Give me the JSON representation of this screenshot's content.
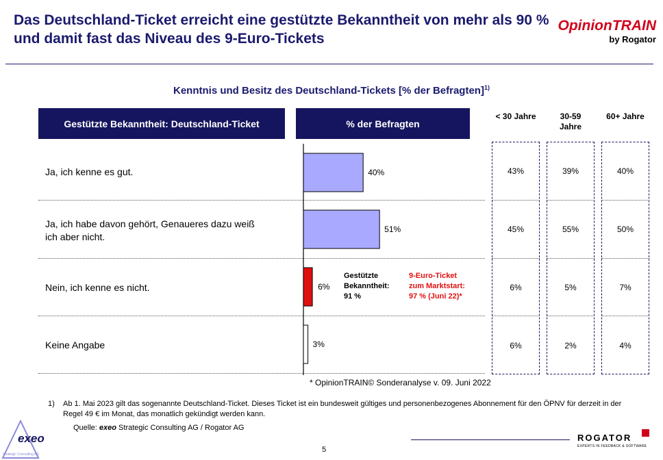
{
  "headline": "Das Deutschland-Ticket erreicht eine gestützte Bekanntheit von mehr als 90 % und damit fast das Niveau des 9-Euro-Tickets",
  "logo": {
    "brand": "OpinionTRAIN",
    "by": "by Rogator"
  },
  "colors": {
    "navy": "#15155f",
    "bar": "#a9a9ff",
    "highlight": "#e01010",
    "accent_red": "#d0021b"
  },
  "chart_data": {
    "type": "bar",
    "title": "Kenntnis und Besitz des Deutschland-Tickets [% der Befragten]",
    "title_sup": "1)",
    "left_header": "Gestützte Bekanntheit: Deutschland-Ticket",
    "value_header": "% der Befragten",
    "categories": [
      "Ja, ich kenne es gut.",
      "Ja, ich habe davon gehört, Genaueres dazu weiß ich aber nicht.",
      "Nein, ich kenne es nicht.",
      "Keine Angabe"
    ],
    "values": [
      40,
      51,
      6,
      3
    ],
    "value_labels": [
      "40%",
      "51%",
      "6%",
      "3%"
    ],
    "highlight_index": 2,
    "age_groups": [
      {
        "name": "< 30 Jahre",
        "values": [
          "43%",
          "45%",
          "6%",
          "6%"
        ]
      },
      {
        "name": "30-59 Jahre",
        "values": [
          "39%",
          "55%",
          "5%",
          "2%"
        ]
      },
      {
        "name": "60+ Jahre",
        "values": [
          "40%",
          "50%",
          "7%",
          "4%"
        ]
      }
    ],
    "annotation_left": [
      "Gestützte",
      "Bekanntheit:",
      "91 %"
    ],
    "annotation_right": [
      "9-Euro-Ticket",
      "zum Marktstart:",
      "97 % (Juni 22)*"
    ],
    "source_note": "* OpinionTRAIN© Sonderanalyse v. 09. Juni 2022"
  },
  "footnote": {
    "marker": "1)",
    "text": "Ab 1. Mai 2023 gilt das sogenannte Deutschland-Ticket. Dieses Ticket ist ein bundesweit gültiges und personenbezogenes Abonnement für den ÖPNV für derzeit in der Regel 49 € im Monat, das monatlich gekündigt werden kann."
  },
  "source": {
    "prefix": "Quelle: ",
    "brand": "exeo",
    "rest": " Strategic Consulting AG / Rogator AG"
  },
  "page_number": "5",
  "bottom_logos": {
    "exeo": "exeo",
    "exeo_sub": "Strategic Consulting AG",
    "rogator": "ROGATOR",
    "rogator_sub": "EXPERTS IN FEEDBACK & SOFTWARE"
  }
}
